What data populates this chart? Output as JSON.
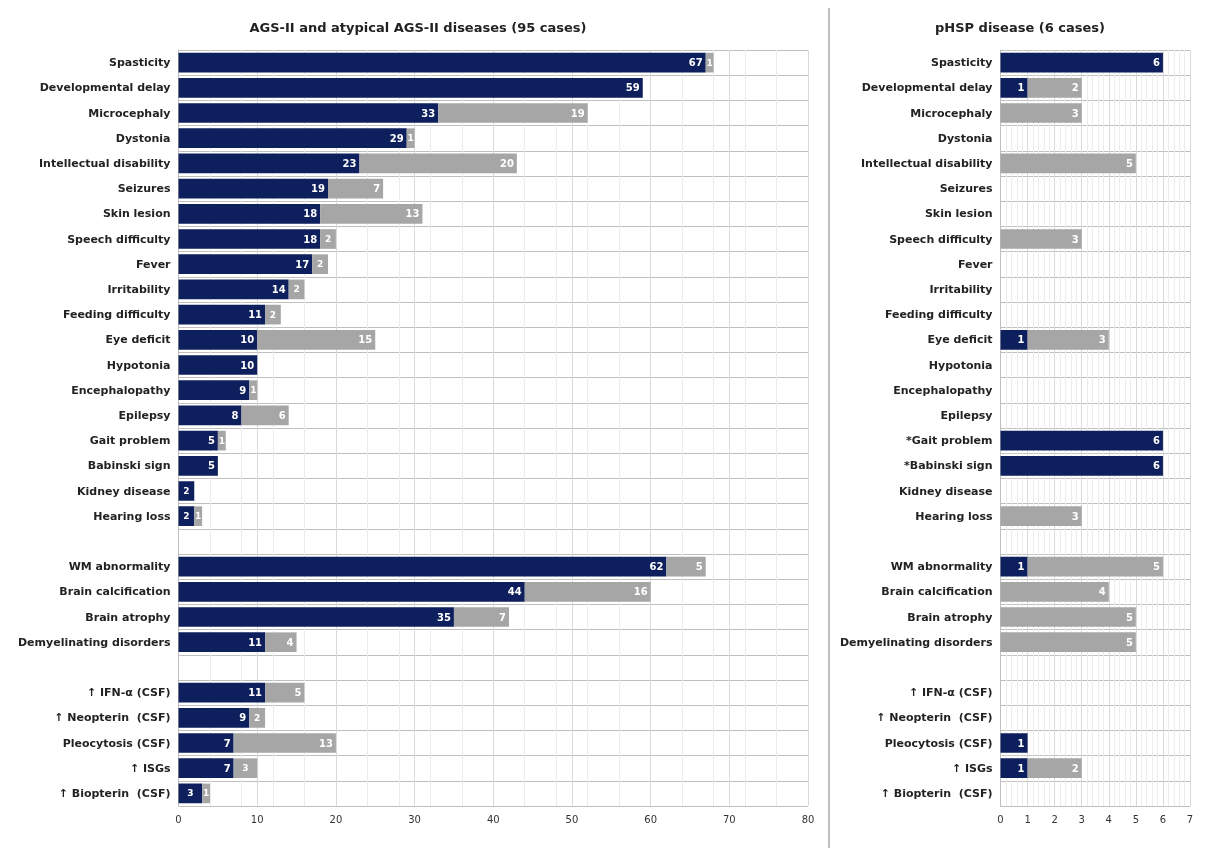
{
  "chart_data": [
    {
      "type": "bar",
      "title": "AGS-II and atypical AGS-II diseases (95 cases)",
      "orientation": "horizontal",
      "stacked": true,
      "data_labels": true,
      "grid": true,
      "categories": [
        "Spasticity",
        "Developmental delay",
        "Microcephaly",
        "Dystonia",
        "Intellectual disability",
        "Seizures",
        "Skin lesion",
        "Speech difficulty",
        "Fever",
        "Irritability",
        "Feeding difficulty",
        "Eye deficit",
        "Hypotonia",
        "Encephalopathy",
        "Epilepsy",
        "Gait problem",
        "Babinski sign",
        "Kidney disease",
        "Hearing loss",
        null,
        "WM abnormality",
        "Brain calcification",
        "Brain atrophy",
        "Demyelinating disorders",
        null,
        "↑ IFN-α (CSF)",
        "↑ Neopterin  (CSF)",
        "Pleocytosis (CSF)",
        "↑ ISGs",
        "↑ Biopterin  (CSF)"
      ],
      "xlim": [
        0,
        80
      ],
      "xticks": [
        0,
        10,
        20,
        30,
        40,
        50,
        60,
        70,
        80
      ],
      "series": [
        {
          "color": "#0d1f5c",
          "values": [
            67,
            59,
            33,
            29,
            23,
            19,
            18,
            18,
            17,
            14,
            11,
            10,
            10,
            9,
            8,
            5,
            5,
            2,
            2,
            null,
            62,
            44,
            35,
            11,
            null,
            11,
            9,
            7,
            7,
            3
          ]
        },
        {
          "color": "#a6a6a6",
          "values": [
            1,
            null,
            19,
            1,
            20,
            7,
            13,
            2,
            2,
            2,
            2,
            15,
            null,
            1,
            6,
            1,
            null,
            null,
            1,
            null,
            5,
            16,
            7,
            4,
            null,
            5,
            2,
            13,
            3,
            1
          ]
        }
      ]
    },
    {
      "type": "bar",
      "title": "pHSP disease (6 cases)",
      "orientation": "horizontal",
      "stacked": true,
      "data_labels": true,
      "grid": true,
      "categories": [
        "Spasticity",
        "Developmental delay",
        "Microcephaly",
        "Dystonia",
        "Intellectual disability",
        "Seizures",
        "Skin lesion",
        "Speech difficulty",
        "Fever",
        "Irritability",
        "Feeding difficulty",
        "Eye deficit",
        "Hypotonia",
        "Encephalopathy",
        "Epilepsy",
        "*Gait problem",
        "*Babinski sign",
        "Kidney disease",
        "Hearing loss",
        null,
        "WM abnormality",
        "Brain calcification",
        "Brain atrophy",
        "Demyelinating disorders",
        null,
        "↑ IFN-α (CSF)",
        "↑ Neopterin  (CSF)",
        "Pleocytosis (CSF)",
        "↑ ISGs",
        "↑ Biopterin  (CSF)"
      ],
      "xlim": [
        0,
        7
      ],
      "xticks": [
        0,
        1,
        2,
        3,
        4,
        5,
        6,
        7
      ],
      "series": [
        {
          "color": "#0d1f5c",
          "values": [
            6,
            1,
            null,
            null,
            null,
            null,
            null,
            null,
            null,
            null,
            null,
            1,
            null,
            null,
            null,
            6,
            6,
            null,
            null,
            null,
            1,
            null,
            null,
            null,
            null,
            null,
            null,
            1,
            1,
            null
          ]
        },
        {
          "color": "#a6a6a6",
          "values": [
            null,
            2,
            3,
            null,
            5,
            null,
            null,
            3,
            null,
            null,
            null,
            3,
            null,
            null,
            null,
            null,
            null,
            null,
            3,
            null,
            5,
            4,
            5,
            5,
            null,
            null,
            null,
            null,
            2,
            null
          ]
        }
      ]
    }
  ]
}
